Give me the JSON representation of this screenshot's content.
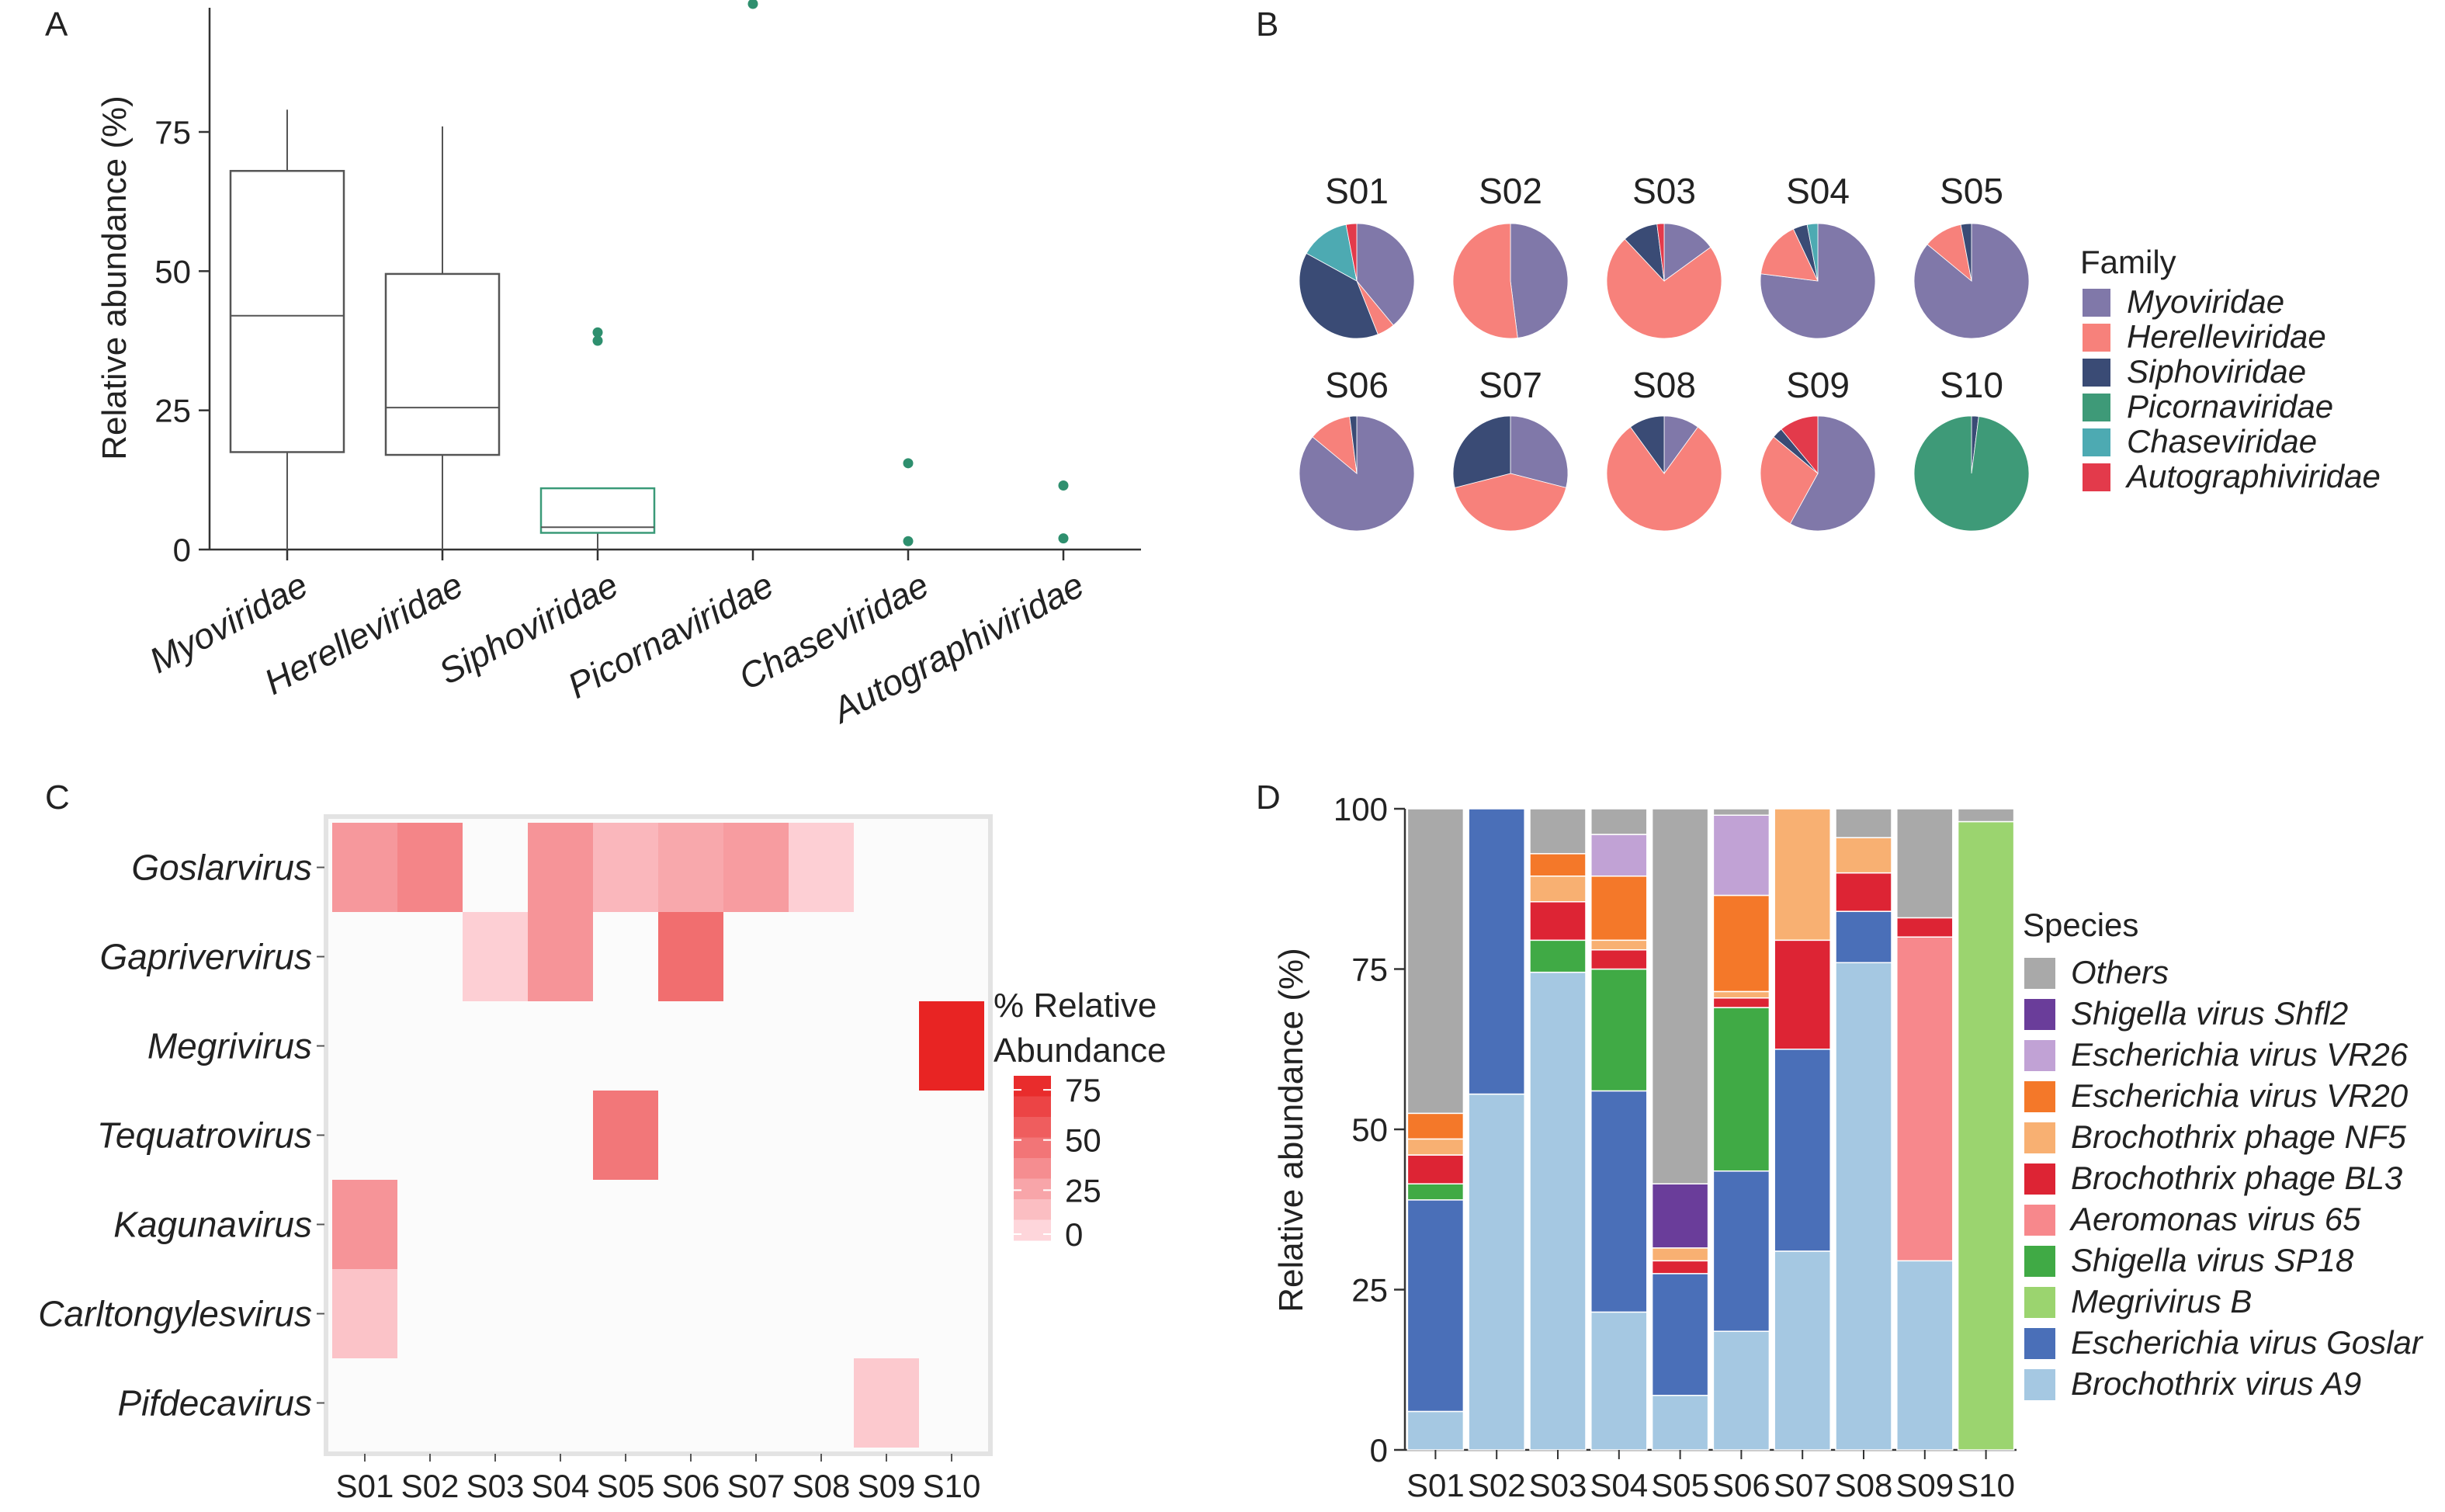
{
  "panels": {
    "A": {
      "label": "A",
      "chart_data": {
        "type": "box",
        "ylabel": "Relative abundance (%)",
        "ylim": [
          0,
          98
        ],
        "yticks": [
          0,
          25,
          50,
          75
        ],
        "categories": [
          "Myoviridae",
          "Herelleviridae",
          "Siphoviridae",
          "Picornaviridae",
          "Chaseviridae",
          "Autographiviridae"
        ],
        "boxes": [
          {
            "category": "Myoviridae",
            "min": 0,
            "q1": 17.5,
            "median": 42,
            "q3": 68,
            "max": 79,
            "outliers": []
          },
          {
            "category": "Herelleviridae",
            "min": 0,
            "q1": 17,
            "median": 25.5,
            "q3": 49.5,
            "max": 76,
            "outliers": []
          },
          {
            "category": "Siphoviridae",
            "min": 0,
            "q1": 3,
            "median": 4,
            "q3": 11,
            "max": 11,
            "outliers": [
              37.5,
              39
            ]
          },
          {
            "category": "Picornaviridae",
            "min": null,
            "q1": null,
            "median": null,
            "q3": null,
            "max": null,
            "outliers": [
              98
            ]
          },
          {
            "category": "Chaseviridae",
            "min": null,
            "q1": null,
            "median": null,
            "q3": null,
            "max": null,
            "outliers": [
              1.5,
              15.5
            ]
          },
          {
            "category": "Autographiviridae",
            "min": null,
            "q1": null,
            "median": null,
            "q3": null,
            "max": null,
            "outliers": [
              2,
              11.5
            ]
          }
        ],
        "colors": {
          "box": "#555555",
          "accent": "#3a9a78",
          "outlier": "#2e8f6e"
        }
      }
    },
    "B": {
      "label": "B",
      "chart_data": {
        "type": "pie",
        "legend_title": "Family",
        "legend_position": "right",
        "families": [
          "Myoviridae",
          "Herelleviridae",
          "Siphoviridae",
          "Picornaviridae",
          "Chaseviridae",
          "Autographiviridae"
        ],
        "colors": [
          "#8078a9",
          "#f7817b",
          "#3a4b75",
          "#3e9a78",
          "#4daab2",
          "#e33a4b"
        ],
        "samples": [
          {
            "name": "S01",
            "values": [
              39,
              5,
              39,
              0,
              14,
              3
            ]
          },
          {
            "name": "S02",
            "values": [
              48,
              52,
              0,
              0,
              0,
              0
            ]
          },
          {
            "name": "S03",
            "values": [
              15,
              73,
              10,
              0,
              0,
              2
            ]
          },
          {
            "name": "S04",
            "values": [
              77,
              16,
              4,
              0,
              3,
              0
            ]
          },
          {
            "name": "S05",
            "values": [
              86,
              11,
              3,
              0,
              0,
              0
            ]
          },
          {
            "name": "S06",
            "values": [
              86,
              12,
              2,
              0,
              0,
              0
            ]
          },
          {
            "name": "S07",
            "values": [
              29,
              42,
              29,
              0,
              0,
              0
            ]
          },
          {
            "name": "S08",
            "values": [
              10,
              80,
              10,
              0,
              0,
              0
            ]
          },
          {
            "name": "S09",
            "values": [
              58,
              28,
              3,
              0,
              0,
              11
            ]
          },
          {
            "name": "S10",
            "values": [
              0,
              0,
              2,
              98,
              0,
              0
            ]
          }
        ]
      }
    },
    "C": {
      "label": "C",
      "chart_data": {
        "type": "heatmap",
        "legend_title_1": "% Relative",
        "legend_title_2": "Abundance",
        "legend_ticks": [
          75,
          50,
          25,
          0
        ],
        "color_min": "#ffffff",
        "color_max": "#e8201f",
        "x": [
          "S01",
          "S02",
          "S03",
          "S04",
          "S05",
          "S06",
          "S07",
          "S08",
          "S09",
          "S10"
        ],
        "y": [
          "Goslarvirus",
          "Gaprivervirus",
          "Megrivirus",
          "Tequatrovirus",
          "Kagunavirus",
          "Carltongylesvirus",
          "Pifdecavirus"
        ],
        "values": [
          [
            38,
            48,
            0,
            40,
            22,
            30,
            36,
            10,
            0,
            0
          ],
          [
            0,
            0,
            10,
            40,
            0,
            60,
            0,
            0,
            0,
            0
          ],
          [
            0,
            0,
            0,
            0,
            0,
            0,
            0,
            0,
            0,
            98
          ],
          [
            0,
            0,
            0,
            0,
            55,
            0,
            0,
            0,
            0,
            0
          ],
          [
            40,
            0,
            0,
            0,
            0,
            0,
            0,
            0,
            0,
            0
          ],
          [
            16,
            0,
            0,
            0,
            0,
            0,
            0,
            0,
            0,
            0
          ],
          [
            0,
            0,
            0,
            0,
            0,
            0,
            0,
            0,
            13,
            0
          ]
        ]
      }
    },
    "D": {
      "label": "D",
      "chart_data": {
        "type": "bar",
        "stacked": true,
        "ylabel": "Relative abundance (%)",
        "ylim": [
          0,
          100
        ],
        "yticks": [
          0,
          25,
          50,
          75,
          100
        ],
        "legend_title": "Species",
        "legend_position": "right",
        "categories": [
          "S01",
          "S02",
          "S03",
          "S04",
          "S05",
          "S06",
          "S07",
          "S08",
          "S09",
          "S10"
        ],
        "series": [
          {
            "name": "Brochothrix virus A9",
            "color": "#a5c8e2",
            "values": [
              6,
              55.5,
              74.5,
              21.5,
              8.5,
              18.5,
              31,
              76,
              29.5,
              0
            ]
          },
          {
            "name": "Escherichia virus Goslar",
            "color": "#4a6fb8",
            "values": [
              33,
              44.5,
              0,
              34.5,
              19,
              25,
              31.5,
              8,
              0,
              0
            ]
          },
          {
            "name": "Megrivirus B",
            "color": "#9bd46f",
            "values": [
              0,
              0,
              0,
              0,
              0,
              0,
              0,
              0,
              0,
              98
            ]
          },
          {
            "name": "Shigella virus SP18",
            "color": "#40aa45",
            "values": [
              2.5,
              0,
              5,
              19,
              0,
              25.5,
              0,
              0,
              0,
              0
            ]
          },
          {
            "name": "Aeromonas virus 65",
            "color": "#f7888c",
            "values": [
              0,
              0,
              0,
              0,
              0,
              0,
              0,
              0,
              50.5,
              0
            ]
          },
          {
            "name": "Brochothrix phage BL3",
            "color": "#dd2434",
            "values": [
              4.5,
              0,
              6,
              3,
              2,
              1.5,
              17,
              6,
              3,
              0
            ]
          },
          {
            "name": "Brochothrix phage NF5",
            "color": "#f8b072",
            "values": [
              2.5,
              0,
              4,
              1.5,
              2,
              1,
              20.5,
              5.5,
              0,
              0
            ]
          },
          {
            "name": "Escherichia virus VR20",
            "color": "#f47829",
            "values": [
              4,
              0,
              3.5,
              10,
              0,
              15,
              0,
              0,
              0,
              0
            ]
          },
          {
            "name": "Escherichia virus VR26",
            "color": "#c1a2d5",
            "values": [
              0,
              0,
              0,
              6.5,
              0,
              12.5,
              0,
              0,
              0,
              0
            ]
          },
          {
            "name": "Shigella virus Shfl2",
            "color": "#6a3d9a",
            "values": [
              0,
              0,
              0,
              0,
              10,
              0,
              0,
              0,
              0,
              0
            ]
          },
          {
            "name": "Others",
            "color": "#a9a9a9",
            "values": [
              47.5,
              0,
              7,
              4,
              58.5,
              1,
              0,
              4.5,
              17,
              2
            ]
          }
        ]
      }
    }
  }
}
